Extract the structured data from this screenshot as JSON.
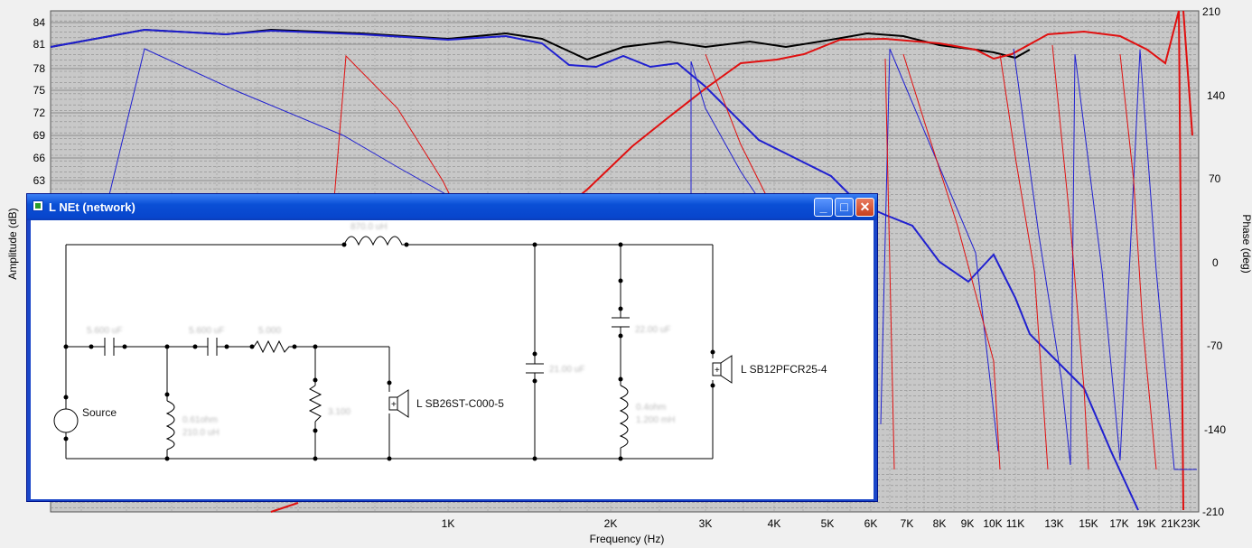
{
  "graph": {
    "y_axis_title": "Amplitude (dB)",
    "phase_axis_title": "Phase (deg)",
    "x_axis_title": "Frequency (Hz)",
    "amplitude_ticks": [
      "84",
      "81",
      "78",
      "75",
      "72",
      "69",
      "66",
      "63"
    ],
    "phase_ticks": [
      "210",
      "140",
      "70",
      "0",
      "-70",
      "-140",
      "-210"
    ],
    "frequency_ticks": [
      "1K",
      "2K",
      "3K",
      "4K",
      "5K",
      "6K",
      "7K",
      "8K",
      "9K",
      "10K",
      "11K",
      "13K",
      "15K",
      "17K",
      "19K",
      "21K",
      "23K"
    ],
    "colors": {
      "plot_background": "#c8c8c8",
      "combined_response": "#000000",
      "woofer_response": "#2020d0",
      "tweeter_response": "#e01010"
    }
  },
  "network_window": {
    "title": "L NEt (network)",
    "minimize_label": "_",
    "maximize_label": "□",
    "close_label": "✕",
    "components": {
      "source_label": "Source",
      "tweeter_label": "L SB26ST-C000-5",
      "woofer_label": "L SB12PFCR25-4",
      "series_inductor_value": "870.0 uH",
      "cap1_value": "5.600 uF",
      "cap2_value": "5.600 uF",
      "series_resistor_value": "5.000",
      "shunt_inductor_value_1": "0.61ohm",
      "shunt_inductor_value_2": "210.0 uH",
      "shunt_resistor_value": "3.100",
      "shunt_cap_value": "21.00 uF",
      "notch_cap_value": "22.00 uF",
      "notch_inductor_value_1": "0.4ohm",
      "notch_inductor_value_2": "1.200 mH"
    }
  }
}
